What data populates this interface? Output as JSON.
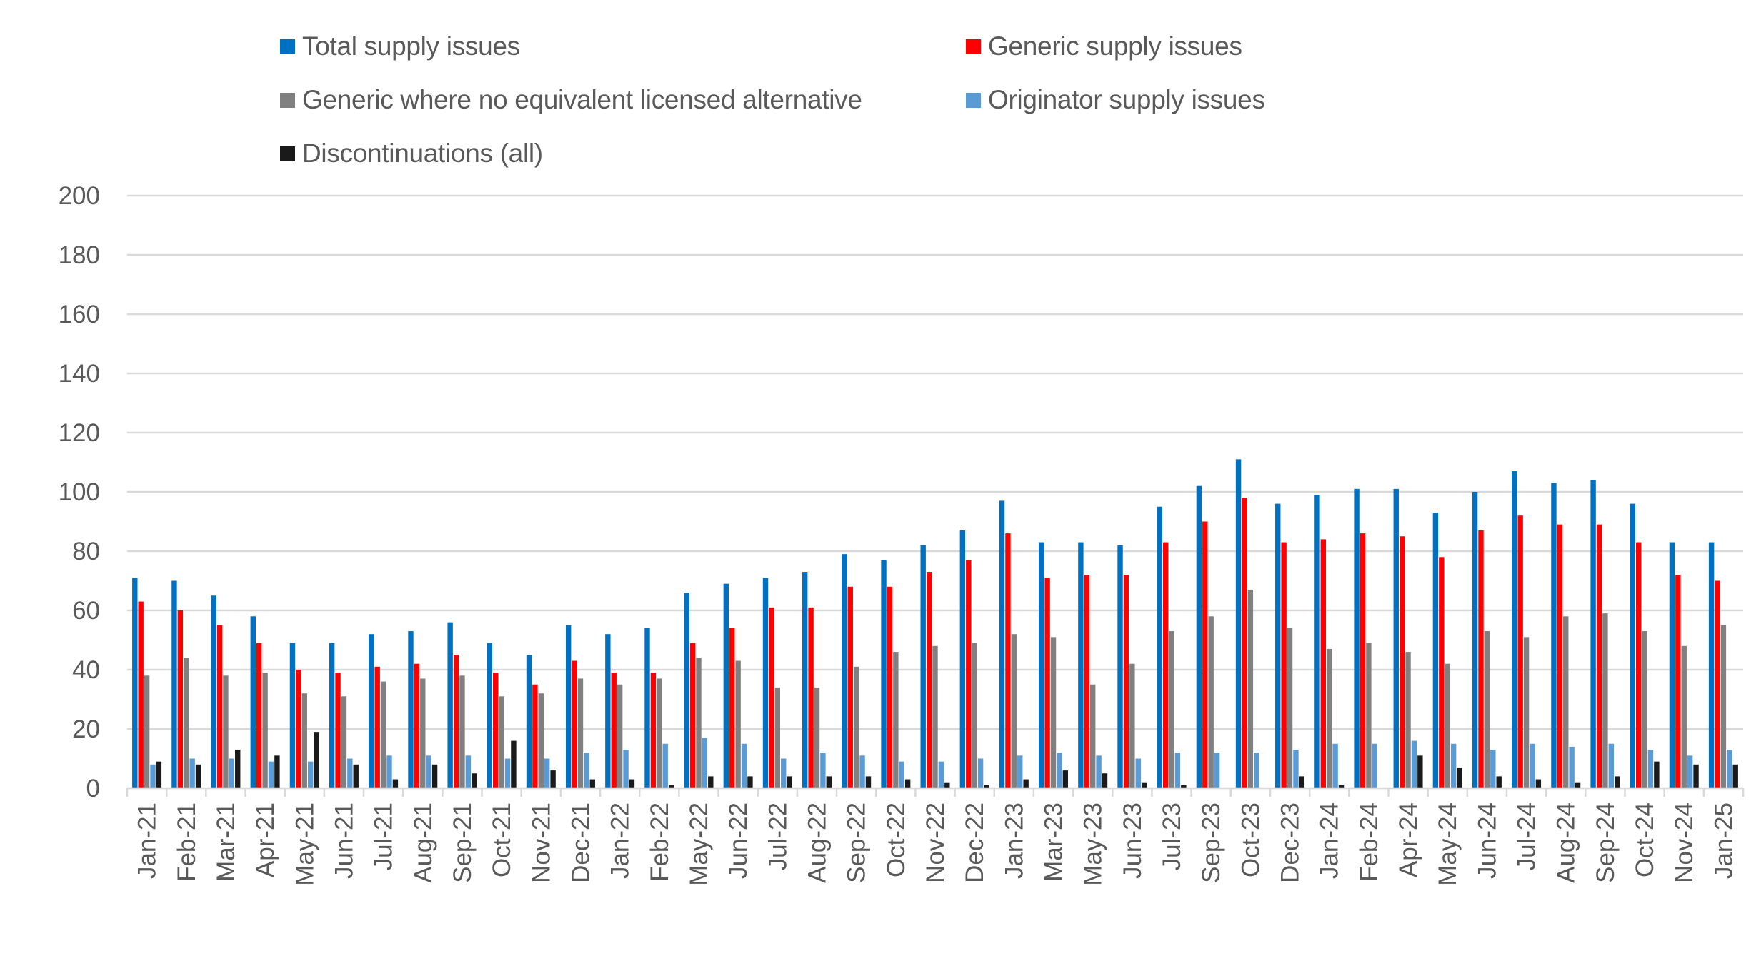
{
  "chart_data": {
    "type": "bar",
    "title": "",
    "xlabel": "",
    "ylabel": "",
    "ylim": [
      0,
      200
    ],
    "yticks": [
      0,
      20,
      40,
      60,
      80,
      100,
      120,
      140,
      160,
      180,
      200
    ],
    "grid": true,
    "legend_position": "top",
    "categories": [
      "Jan-21",
      "Feb-21",
      "Mar-21",
      "Apr-21",
      "May-21",
      "Jun-21",
      "Jul-21",
      "Aug-21",
      "Sep-21",
      "Oct-21",
      "Nov-21",
      "Dec-21",
      "Jan-22",
      "Feb-22",
      "May-22",
      "Jun-22",
      "Jul-22",
      "Aug-22",
      "Sep-22",
      "Oct-22",
      "Nov-22",
      "Dec-22",
      "Jan-23",
      "Mar-23",
      "May-23",
      "Jun-23",
      "Jul-23",
      "Sep-23",
      "Oct-23",
      "Dec-23",
      "Jan-24",
      "Feb-24",
      "Apr-24",
      "May-24",
      "Jun-24",
      "Jul-24",
      "Aug-24",
      "Sep-24",
      "Oct-24",
      "Nov-24",
      "Jan-25"
    ],
    "series": [
      {
        "name": "Total supply issues",
        "color": "#0070C0",
        "values": [
          71,
          70,
          65,
          58,
          49,
          49,
          52,
          53,
          56,
          49,
          45,
          55,
          52,
          54,
          66,
          69,
          71,
          73,
          79,
          77,
          82,
          87,
          97,
          83,
          83,
          82,
          95,
          102,
          111,
          96,
          99,
          101,
          101,
          93,
          100,
          107,
          103,
          104,
          96,
          83,
          83
        ]
      },
      {
        "name": "Generic supply issues",
        "color": "#FF0000",
        "values": [
          63,
          60,
          55,
          49,
          40,
          39,
          41,
          42,
          45,
          39,
          35,
          43,
          39,
          39,
          49,
          54,
          61,
          61,
          68,
          68,
          73,
          77,
          86,
          71,
          72,
          72,
          83,
          90,
          98,
          83,
          84,
          86,
          85,
          78,
          87,
          92,
          89,
          89,
          83,
          72,
          70
        ]
      },
      {
        "name": "Generic where no equivalent licensed alternative",
        "color": "#808080",
        "values": [
          38,
          44,
          38,
          39,
          32,
          31,
          36,
          37,
          38,
          31,
          32,
          37,
          35,
          37,
          44,
          43,
          34,
          34,
          41,
          46,
          48,
          49,
          52,
          51,
          35,
          42,
          53,
          58,
          67,
          54,
          47,
          49,
          46,
          42,
          53,
          51,
          58,
          59,
          53,
          48,
          55
        ]
      },
      {
        "name": "Originator supply issues",
        "color": "#5B9BD5",
        "values": [
          8,
          10,
          10,
          9,
          9,
          10,
          11,
          11,
          11,
          10,
          10,
          12,
          13,
          15,
          17,
          15,
          10,
          12,
          11,
          9,
          9,
          10,
          11,
          12,
          11,
          10,
          12,
          12,
          12,
          13,
          15,
          15,
          16,
          15,
          13,
          15,
          14,
          15,
          13,
          11,
          13
        ]
      },
      {
        "name": "Discontinuations (all)",
        "color": "#1A1A1A",
        "values": [
          9,
          8,
          13,
          11,
          19,
          8,
          3,
          8,
          5,
          16,
          6,
          3,
          3,
          1,
          4,
          4,
          4,
          4,
          4,
          3,
          2,
          1,
          3,
          6,
          5,
          2,
          1,
          0,
          0,
          4,
          1,
          0,
          11,
          7,
          4,
          3,
          2,
          4,
          9,
          8,
          8
        ]
      }
    ]
  }
}
